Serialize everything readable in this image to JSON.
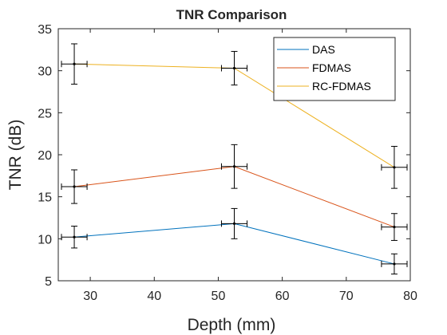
{
  "chart_data": {
    "type": "line",
    "title": "TNR Comparison",
    "xlabel": "Depth (mm)",
    "ylabel": "TNR (dB)",
    "xlim": [
      25,
      80
    ],
    "ylim": [
      5,
      35
    ],
    "xticks": [
      30,
      40,
      50,
      60,
      70,
      80
    ],
    "yticks": [
      5,
      10,
      15,
      20,
      25,
      30,
      35
    ],
    "grid": false,
    "legend_position": "top-right",
    "x": [
      27.5,
      52.5,
      77.5
    ],
    "x_error": 2,
    "series": [
      {
        "name": "DAS",
        "color": "#0072BD",
        "values": [
          10.2,
          11.8,
          7.0
        ],
        "yerr": [
          1.3,
          1.8,
          1.2
        ]
      },
      {
        "name": "FDMAS",
        "color": "#D95319",
        "values": [
          16.2,
          18.6,
          11.4
        ],
        "yerr": [
          2.0,
          2.6,
          1.6
        ]
      },
      {
        "name": "RC-FDMAS",
        "color": "#EDB120",
        "values": [
          30.8,
          30.3,
          18.5
        ],
        "yerr": [
          2.4,
          2.0,
          2.5
        ]
      }
    ]
  }
}
